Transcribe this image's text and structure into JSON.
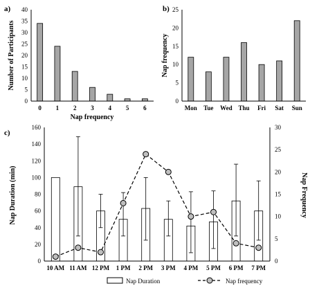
{
  "chart_data": [
    {
      "panel": "a)",
      "type": "bar",
      "xlabel": "Nap frequency",
      "ylabel": "Number of Participants",
      "categories": [
        "0",
        "1",
        "2",
        "3",
        "4",
        "5",
        "6"
      ],
      "values": [
        34,
        24,
        13,
        6,
        3,
        1,
        1
      ],
      "ylim": [
        0,
        40
      ],
      "yticks": [
        0,
        5,
        10,
        15,
        20,
        25,
        30,
        35,
        40
      ],
      "grid": false,
      "colors": {
        "bar": "#a6a6a6",
        "edge": "#000000"
      }
    },
    {
      "panel": "b)",
      "type": "bar",
      "xlabel": "",
      "ylabel": "Nap frequency",
      "categories": [
        "Mon",
        "Tue",
        "Wed",
        "Thu",
        "Fri",
        "Sat",
        "Sun"
      ],
      "values": [
        12,
        8,
        12,
        16,
        10,
        11,
        22
      ],
      "ylim": [
        0,
        25
      ],
      "yticks": [
        0,
        5,
        10,
        15,
        20,
        25
      ],
      "grid": false,
      "colors": {
        "bar": "#a6a6a6",
        "edge": "#000000"
      }
    },
    {
      "panel": "c)",
      "type": "bar+line",
      "categories": [
        "10 AM",
        "11 AM",
        "12 PM",
        "1 PM",
        "2 PM",
        "3 PM",
        "4 PM",
        "5 PM",
        "6 PM",
        "7 PM"
      ],
      "ylabel": "Nap Duration (min)",
      "y2label": "Nap Frequency",
      "ylim": [
        0,
        160
      ],
      "yticks": [
        0,
        20,
        40,
        60,
        80,
        100,
        120,
        140,
        160
      ],
      "y2lim": [
        0,
        30
      ],
      "y2ticks": [
        0,
        5,
        10,
        15,
        20,
        25,
        30
      ],
      "grid": false,
      "legend_position": "bottom",
      "series": [
        {
          "name": "Nap Duration",
          "type": "bar",
          "axis": "left",
          "values": [
            100,
            89,
            60,
            50,
            63,
            50,
            42,
            47,
            72,
            60
          ],
          "error_low": [
            null,
            30,
            40,
            30,
            25,
            30,
            10,
            15,
            30,
            25
          ],
          "error_high": [
            null,
            149,
            80,
            82,
            100,
            72,
            83,
            84,
            116,
            96
          ]
        },
        {
          "name": "Nap frequency",
          "type": "line",
          "axis": "right",
          "values": [
            1,
            3,
            2,
            13,
            24,
            20,
            10,
            11,
            4,
            3
          ]
        }
      ],
      "colors": {
        "bar": "#ffffff",
        "edge": "#000000",
        "marker": "#bfbfbf"
      }
    }
  ]
}
